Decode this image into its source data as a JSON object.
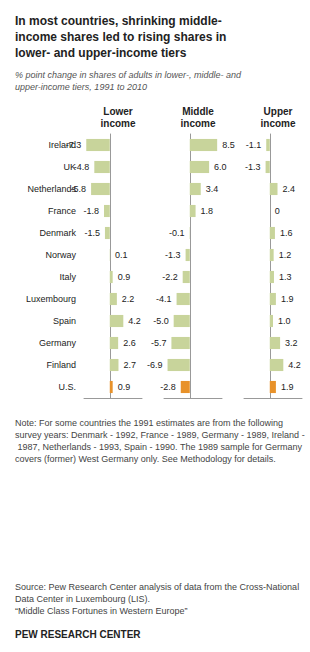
{
  "chart_data": {
    "type": "bar",
    "orientation": "horizontal",
    "title": "In most countries, shrinking middle-\nincome shares led to rising shares in\nlower- and upper-income tiers",
    "subtitle": "% point change in shares of adults in lower-, middle- and\nupper-income tiers, 1991 to 2010",
    "annotations": [
      "Note: For some countries the 1991 estimates are from the following survey years: Denmark - 1992, France - 1989, Germany - 1989, Ireland - 1987, Netherlands - 1993, Spain - 1990. The 1989 sample for Germany covers (former) West Germany only. See Methodology for details.",
      "Source: Pew Research Center analysis of data from the Cross-National Data Center in Luxembourg (LIS).\n“Middle Class Fortunes in Western Europe”",
      "PEW RESEARCH CENTER"
    ],
    "categories": [
      "Ireland",
      "UK",
      "Netherlands",
      "France",
      "Denmark",
      "Norway",
      "Italy",
      "Luxembourg",
      "Spain",
      "Germany",
      "Finland",
      "U.S."
    ],
    "series": [
      {
        "name": "Lower\nincome",
        "values": [
          -7.3,
          -4.8,
          -5.8,
          -1.8,
          -1.5,
          0.1,
          0.9,
          2.2,
          4.2,
          2.6,
          2.7,
          0.9
        ],
        "value_labels": [
          "-7.3",
          "-4.8",
          "-5.8",
          "-1.8",
          "-1.5",
          "0.1",
          "0.9",
          "2.2",
          "4.2",
          "2.6",
          "2.7",
          "0.9"
        ],
        "colors": [
          "#c8d49b",
          "#c8d49b",
          "#c8d49b",
          "#c8d49b",
          "#c8d49b",
          "#c8d49b",
          "#c8d49b",
          "#c8d49b",
          "#c8d49b",
          "#c8d49b",
          "#c8d49b",
          "#e8922a"
        ]
      },
      {
        "name": "Middle\nincome",
        "values": [
          8.5,
          6.0,
          3.4,
          1.8,
          -0.1,
          -1.3,
          -2.2,
          -4.1,
          -5.0,
          -5.7,
          -6.9,
          -2.8
        ],
        "value_labels": [
          "8.5",
          "6.0",
          "3.4",
          "1.8",
          "-0.1",
          "-1.3",
          "-2.2",
          "-4.1",
          "-5.0",
          "-5.7",
          "-6.9",
          "-2.8"
        ],
        "colors": [
          "#c8d49b",
          "#c8d49b",
          "#c8d49b",
          "#c8d49b",
          "#c8d49b",
          "#c8d49b",
          "#c8d49b",
          "#c8d49b",
          "#c8d49b",
          "#c8d49b",
          "#c8d49b",
          "#e8922a"
        ]
      },
      {
        "name": "Upper\nincome",
        "values": [
          -1.1,
          -1.3,
          2.4,
          0,
          1.6,
          1.2,
          1.3,
          1.9,
          1.0,
          3.2,
          4.2,
          1.9
        ],
        "value_labels": [
          "-1.1",
          "-1.3",
          "2.4",
          "0",
          "1.6",
          "1.2",
          "1.3",
          "1.9",
          "1.0",
          "3.2",
          "4.2",
          "1.9"
        ],
        "colors": [
          "#c8d49b",
          "#c8d49b",
          "#c8d49b",
          "#c8d49b",
          "#c8d49b",
          "#c8d49b",
          "#c8d49b",
          "#c8d49b",
          "#c8d49b",
          "#c8d49b",
          "#c8d49b",
          "#e8922a"
        ]
      }
    ],
    "xlim": [
      -8,
      10
    ],
    "data_labels": true,
    "tick_labels": "y",
    "grid": false
  }
}
